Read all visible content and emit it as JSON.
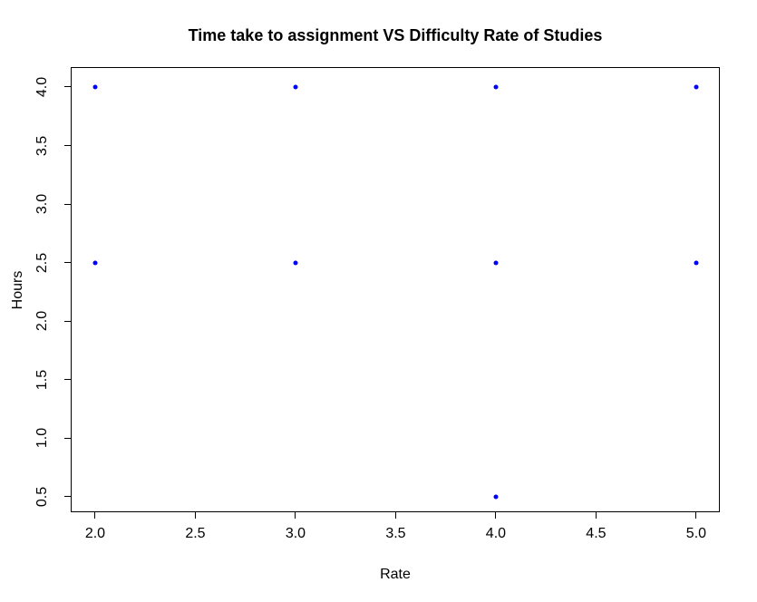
{
  "chart_data": {
    "type": "scatter",
    "title": "Time take to assignment VS Difficulty Rate of Studies",
    "xlabel": "Rate",
    "ylabel": "Hours",
    "xlim": [
      1.878,
      5.118
    ],
    "ylim": [
      0.368,
      4.17
    ],
    "x_ticks": {
      "values": [
        2.0,
        2.5,
        3.0,
        3.5,
        4.0,
        4.5,
        5.0
      ],
      "labels": [
        "2.0",
        "2.5",
        "3.0",
        "3.5",
        "4.0",
        "4.5",
        "5.0"
      ]
    },
    "y_ticks": {
      "values": [
        0.5,
        1.0,
        1.5,
        2.0,
        2.5,
        3.0,
        3.5,
        4.0
      ],
      "labels": [
        "0.5",
        "1.0",
        "1.5",
        "2.0",
        "2.5",
        "3.0",
        "3.5",
        "4.0"
      ]
    },
    "points": [
      {
        "x": 2.0,
        "y": 4.0
      },
      {
        "x": 3.0,
        "y": 4.0
      },
      {
        "x": 4.0,
        "y": 4.0
      },
      {
        "x": 5.0,
        "y": 4.0
      },
      {
        "x": 2.0,
        "y": 2.5
      },
      {
        "x": 3.0,
        "y": 2.5
      },
      {
        "x": 4.0,
        "y": 2.5
      },
      {
        "x": 5.0,
        "y": 2.5
      },
      {
        "x": 4.0,
        "y": 0.5
      }
    ],
    "point_color": "#0000FF",
    "axis_color": "#000000",
    "background_color": "#FFFFFF",
    "grid": false,
    "legend": false
  }
}
